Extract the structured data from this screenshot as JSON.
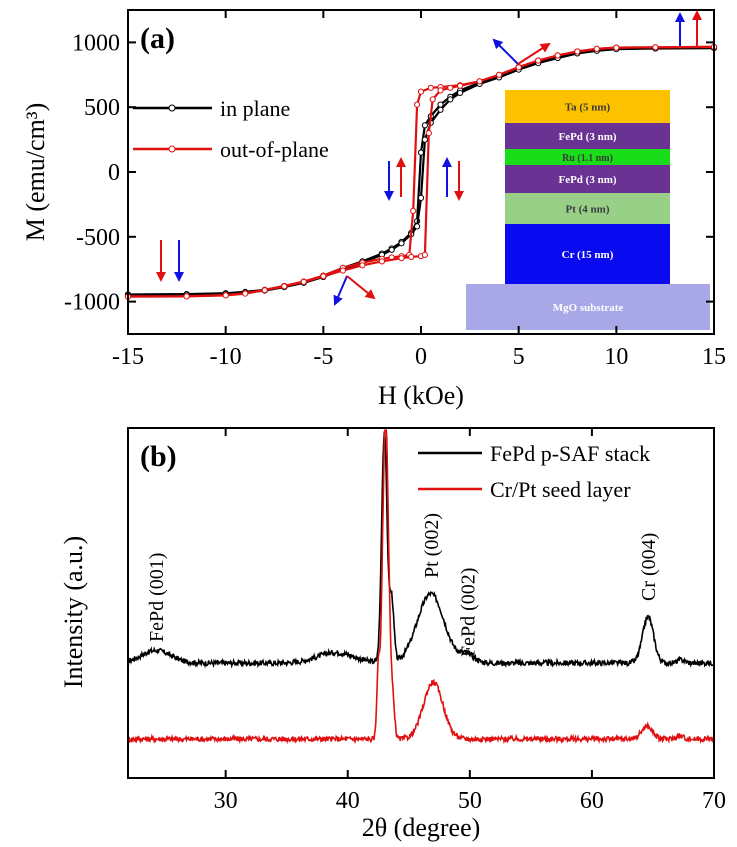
{
  "chart_data": [
    {
      "panel": "(a)",
      "type": "line",
      "xlabel": "H (kOe)",
      "ylabel": "M (emu/cm³)",
      "xlim": [
        -15,
        15
      ],
      "ylim": [
        -1250,
        1250
      ],
      "xticks": [
        -15,
        -10,
        -5,
        0,
        5,
        10,
        15
      ],
      "yticks": [
        -1000,
        -500,
        0,
        500,
        1000
      ],
      "legend_position": "left",
      "colors": {
        "in_plane": "#000000",
        "out_of_plane": "#e01010",
        "blue_arrow": "#1010e0"
      },
      "series": [
        {
          "name": "in plane",
          "branch_desc": {
            "x": [
              -15,
              -12,
              -10,
              -9,
              -8,
              -7,
              -6,
              -5,
              -4,
              -3,
              -2,
              -1.5,
              -1,
              -0.5,
              -0.2,
              0,
              0.2,
              0.5,
              1,
              1.5,
              2,
              3,
              4,
              5,
              6,
              7,
              8,
              9,
              10,
              12,
              15
            ],
            "y": [
              -945,
              -942,
              -935,
              -925,
              -910,
              -880,
              -850,
              -800,
              -740,
              -690,
              -630,
              -590,
              -540,
              -470,
              -380,
              150,
              360,
              430,
              520,
              580,
              630,
              690,
              740,
              800,
              850,
              890,
              920,
              940,
              950,
              955,
              958
            ]
          },
          "branch_asc": {
            "x": [
              -15,
              -12,
              -10,
              -9,
              -8,
              -7,
              -6,
              -5,
              -4,
              -3,
              -2,
              -1.5,
              -1,
              -0.5,
              -0.2,
              0,
              0.2,
              0.5,
              1,
              1.5,
              2,
              3,
              4,
              5,
              6,
              7,
              8,
              9,
              10,
              12,
              15
            ],
            "y": [
              -950,
              -947,
              -940,
              -930,
              -915,
              -888,
              -855,
              -810,
              -750,
              -700,
              -640,
              -600,
              -550,
              -480,
              -420,
              -200,
              250,
              380,
              480,
              560,
              610,
              680,
              730,
              790,
              840,
              880,
              915,
              935,
              948,
              953,
              956
            ]
          }
        },
        {
          "name": "out-of-plane",
          "branch_desc": {
            "x": [
              -15,
              -12,
              -10,
              -9,
              -8,
              -7,
              -6,
              -5,
              -4,
              -3,
              -2,
              -1.5,
              -1,
              -0.6,
              -0.4,
              -0.2,
              0,
              0.5,
              1,
              2,
              3,
              4,
              5,
              6,
              7,
              8,
              9,
              10,
              12,
              15
            ],
            "y": [
              -960,
              -958,
              -950,
              -935,
              -910,
              -880,
              -845,
              -800,
              -740,
              -700,
              -670,
              -660,
              -650,
              -640,
              -300,
              520,
              620,
              650,
              655,
              670,
              700,
              750,
              810,
              860,
              900,
              930,
              950,
              960,
              962,
              965
            ]
          },
          "branch_asc": {
            "x": [
              -15,
              -12,
              -10,
              -9,
              -8,
              -7,
              -6,
              -5,
              -4,
              -3,
              -2,
              -1,
              -0.5,
              0,
              0.2,
              0.4,
              0.6,
              1,
              1.5,
              2,
              3,
              4,
              5,
              6,
              7,
              8,
              9,
              10,
              12,
              15
            ],
            "y": [
              -962,
              -960,
              -952,
              -938,
              -912,
              -882,
              -848,
              -805,
              -760,
              -720,
              -690,
              -665,
              -655,
              -650,
              -640,
              300,
              560,
              630,
              650,
              665,
              700,
              750,
              808,
              860,
              900,
              930,
              950,
              960,
              962,
              965
            ]
          }
        }
      ],
      "annotations": {
        "layer_stack": [
          "Ta (5 nm)",
          "FePd (3 nm)",
          "Ru (1.1 nm)",
          "FePd (3 nm)",
          "Pt (4 nm)",
          "Cr (15 nm)",
          "MgO substrate"
        ],
        "layer_colors": [
          "#fcc200",
          "#6a3393",
          "#18dd18",
          "#6a3393",
          "#98d088",
          "#0a0af0",
          "#a8a8e8"
        ]
      }
    },
    {
      "panel": "(b)",
      "type": "line",
      "xlabel": "2θ (degree)",
      "ylabel": "Intensity (a.u.)",
      "xlim": [
        22,
        70
      ],
      "xticks": [
        30,
        40,
        50,
        60,
        70
      ],
      "legend_position": "top-right",
      "colors": {
        "stack": "#000000",
        "seed": "#e01010"
      },
      "series": [
        {
          "name": "FePd p-SAF stack",
          "baseline": 0.08,
          "peaks": [
            {
              "center": 24.3,
              "height": 0.06,
              "width": 1.2
            },
            {
              "center": 39.0,
              "height": 0.05,
              "width": 1.5
            },
            {
              "center": 43.0,
              "height": 1.1,
              "width": 0.22
            },
            {
              "center": 43.6,
              "height": 0.3,
              "width": 0.18
            },
            {
              "center": 46.8,
              "height": 0.33,
              "width": 1.1
            },
            {
              "center": 49.8,
              "height": 0.04,
              "width": 0.6
            },
            {
              "center": 64.6,
              "height": 0.22,
              "width": 0.45
            },
            {
              "center": 67.3,
              "height": 0.015,
              "width": 0.3
            }
          ]
        },
        {
          "name": "Cr/Pt seed layer",
          "baseline": 0.0,
          "peaks": [
            {
              "center": 42.5,
              "height": 0.3,
              "width": 0.12
            },
            {
              "center": 43.1,
              "height": 1.55,
              "width": 0.25
            },
            {
              "center": 43.7,
              "height": 0.15,
              "width": 0.15
            },
            {
              "center": 47.0,
              "height": 0.27,
              "width": 0.8
            },
            {
              "center": 64.5,
              "height": 0.06,
              "width": 0.45
            },
            {
              "center": 67.2,
              "height": 0.015,
              "width": 0.3
            }
          ]
        }
      ],
      "annotations": [
        {
          "text": "FePd (001)",
          "x": 24.3
        },
        {
          "text": "Pt (002)",
          "x": 46.8
        },
        {
          "text": "FePd (002)",
          "x": 49.8
        },
        {
          "text": "Cr (004)",
          "x": 64.6
        }
      ]
    }
  ]
}
